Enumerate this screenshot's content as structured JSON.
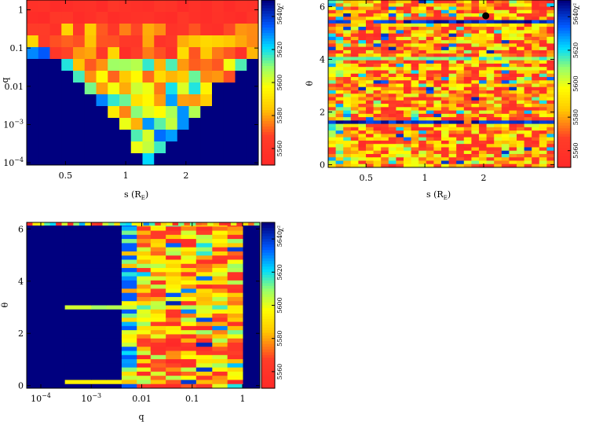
{
  "chart_data": [
    {
      "type": "heatmap",
      "id": "s-q",
      "xlabel": "s (R",
      "xlabel_sub": "E",
      "xlabel_close": ")",
      "ylabel": "q",
      "xscale": "log",
      "yscale": "log",
      "xlim": [
        0.32,
        4.6
      ],
      "ylim": [
        8.75e-05,
        1.8
      ],
      "xticks": [
        {
          "value": 0.5,
          "label": "0.5"
        },
        {
          "value": 1,
          "label": "1"
        },
        {
          "value": 2,
          "label": "2"
        }
      ],
      "yticks": [
        {
          "value": 1,
          "label": "1"
        },
        {
          "value": 0.1,
          "label": "0.1"
        },
        {
          "value": 0.01,
          "label": "0.01"
        },
        {
          "value": 0.001,
          "label": "10^-3",
          "base": "10",
          "exp": "−3"
        },
        {
          "value": 0.0001,
          "label": "10^-4",
          "base": "10",
          "exp": "−4"
        }
      ],
      "colorbar": {
        "label": "χ²",
        "ticks": [
          "5560",
          "5580",
          "5600",
          "5620",
          "5640"
        ]
      },
      "zlim": [
        5550,
        5650
      ],
      "marker": null
    },
    {
      "type": "heatmap",
      "id": "s-theta",
      "xlabel": "s (R",
      "xlabel_sub": "E",
      "xlabel_close": ")",
      "ylabel": "θ",
      "xscale": "log",
      "yscale": "linear",
      "xlim": [
        0.32,
        4.6
      ],
      "ylim": [
        -0.1,
        6.25
      ],
      "xticks": [
        {
          "value": 0.5,
          "label": "0.5"
        },
        {
          "value": 1,
          "label": "1"
        },
        {
          "value": 2,
          "label": "2"
        }
      ],
      "yticks": [
        {
          "value": 0,
          "label": "0"
        },
        {
          "value": 2,
          "label": "2"
        },
        {
          "value": 4,
          "label": "4"
        },
        {
          "value": 6,
          "label": "6"
        }
      ],
      "colorbar": {
        "label": "χ²",
        "ticks": [
          "5560",
          "5580",
          "5600",
          "5620",
          "5640"
        ]
      },
      "zlim": [
        5550,
        5650
      ],
      "marker": {
        "s": 2.05,
        "theta": 5.65
      }
    },
    {
      "type": "heatmap",
      "id": "q-theta",
      "xlabel": "q",
      "ylabel": "θ",
      "xscale": "log",
      "yscale": "linear",
      "xlim": [
        5.25e-05,
        2.2
      ],
      "ylim": [
        -0.1,
        6.25
      ],
      "xticks": [
        {
          "value": 0.0001,
          "label": "10^-4",
          "base": "10",
          "exp": "−4"
        },
        {
          "value": 0.001,
          "label": "10^-3",
          "base": "10",
          "exp": "−3"
        },
        {
          "value": 0.01,
          "label": "0.01"
        },
        {
          "value": 0.1,
          "label": "0.1"
        },
        {
          "value": 1,
          "label": "1"
        }
      ],
      "yticks": [
        {
          "value": 0,
          "label": "0"
        },
        {
          "value": 2,
          "label": "2"
        },
        {
          "value": 4,
          "label": "4"
        },
        {
          "value": 6,
          "label": "6"
        }
      ],
      "colorbar": {
        "label": "χ²",
        "ticks": [
          "5560",
          "5580",
          "5600",
          "5620",
          "5640"
        ]
      },
      "zlim": [
        5550,
        5650
      ],
      "marker": null
    }
  ],
  "colors": {
    "low": "#ff2020",
    "high": "#00007f",
    "background": "#ffffff"
  }
}
